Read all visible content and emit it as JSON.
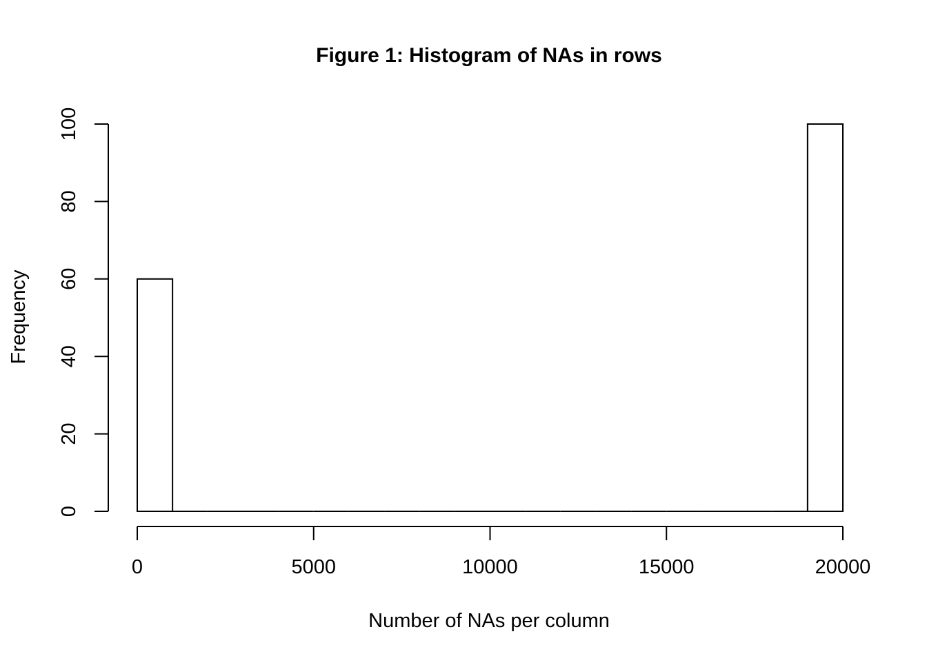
{
  "chart_data": {
    "type": "bar",
    "title": "Figure 1: Histogram of NAs in rows",
    "xlabel": "Number of NAs per column",
    "ylabel": "Frequency",
    "xlim": [
      0,
      20000
    ],
    "ylim": [
      0,
      100
    ],
    "x_ticks": [
      0,
      5000,
      10000,
      15000,
      20000
    ],
    "y_ticks": [
      0,
      20,
      40,
      60,
      80,
      100
    ],
    "bin_width": 1000,
    "bins": [
      {
        "start": 0,
        "end": 1000,
        "count": 60
      },
      {
        "start": 1000,
        "end": 2000,
        "count": 0
      },
      {
        "start": 2000,
        "end": 3000,
        "count": 0
      },
      {
        "start": 3000,
        "end": 4000,
        "count": 0
      },
      {
        "start": 4000,
        "end": 5000,
        "count": 0
      },
      {
        "start": 5000,
        "end": 6000,
        "count": 0
      },
      {
        "start": 6000,
        "end": 7000,
        "count": 0
      },
      {
        "start": 7000,
        "end": 8000,
        "count": 0
      },
      {
        "start": 8000,
        "end": 9000,
        "count": 0
      },
      {
        "start": 9000,
        "end": 10000,
        "count": 0
      },
      {
        "start": 10000,
        "end": 11000,
        "count": 0
      },
      {
        "start": 11000,
        "end": 12000,
        "count": 0
      },
      {
        "start": 12000,
        "end": 13000,
        "count": 0
      },
      {
        "start": 13000,
        "end": 14000,
        "count": 0
      },
      {
        "start": 14000,
        "end": 15000,
        "count": 0
      },
      {
        "start": 15000,
        "end": 16000,
        "count": 0
      },
      {
        "start": 16000,
        "end": 17000,
        "count": 0
      },
      {
        "start": 17000,
        "end": 18000,
        "count": 0
      },
      {
        "start": 18000,
        "end": 19000,
        "count": 0
      },
      {
        "start": 19000,
        "end": 20000,
        "count": 100
      }
    ],
    "grid": false,
    "colors": {
      "bar_fill": "#ffffff",
      "bar_stroke": "#000000"
    }
  }
}
